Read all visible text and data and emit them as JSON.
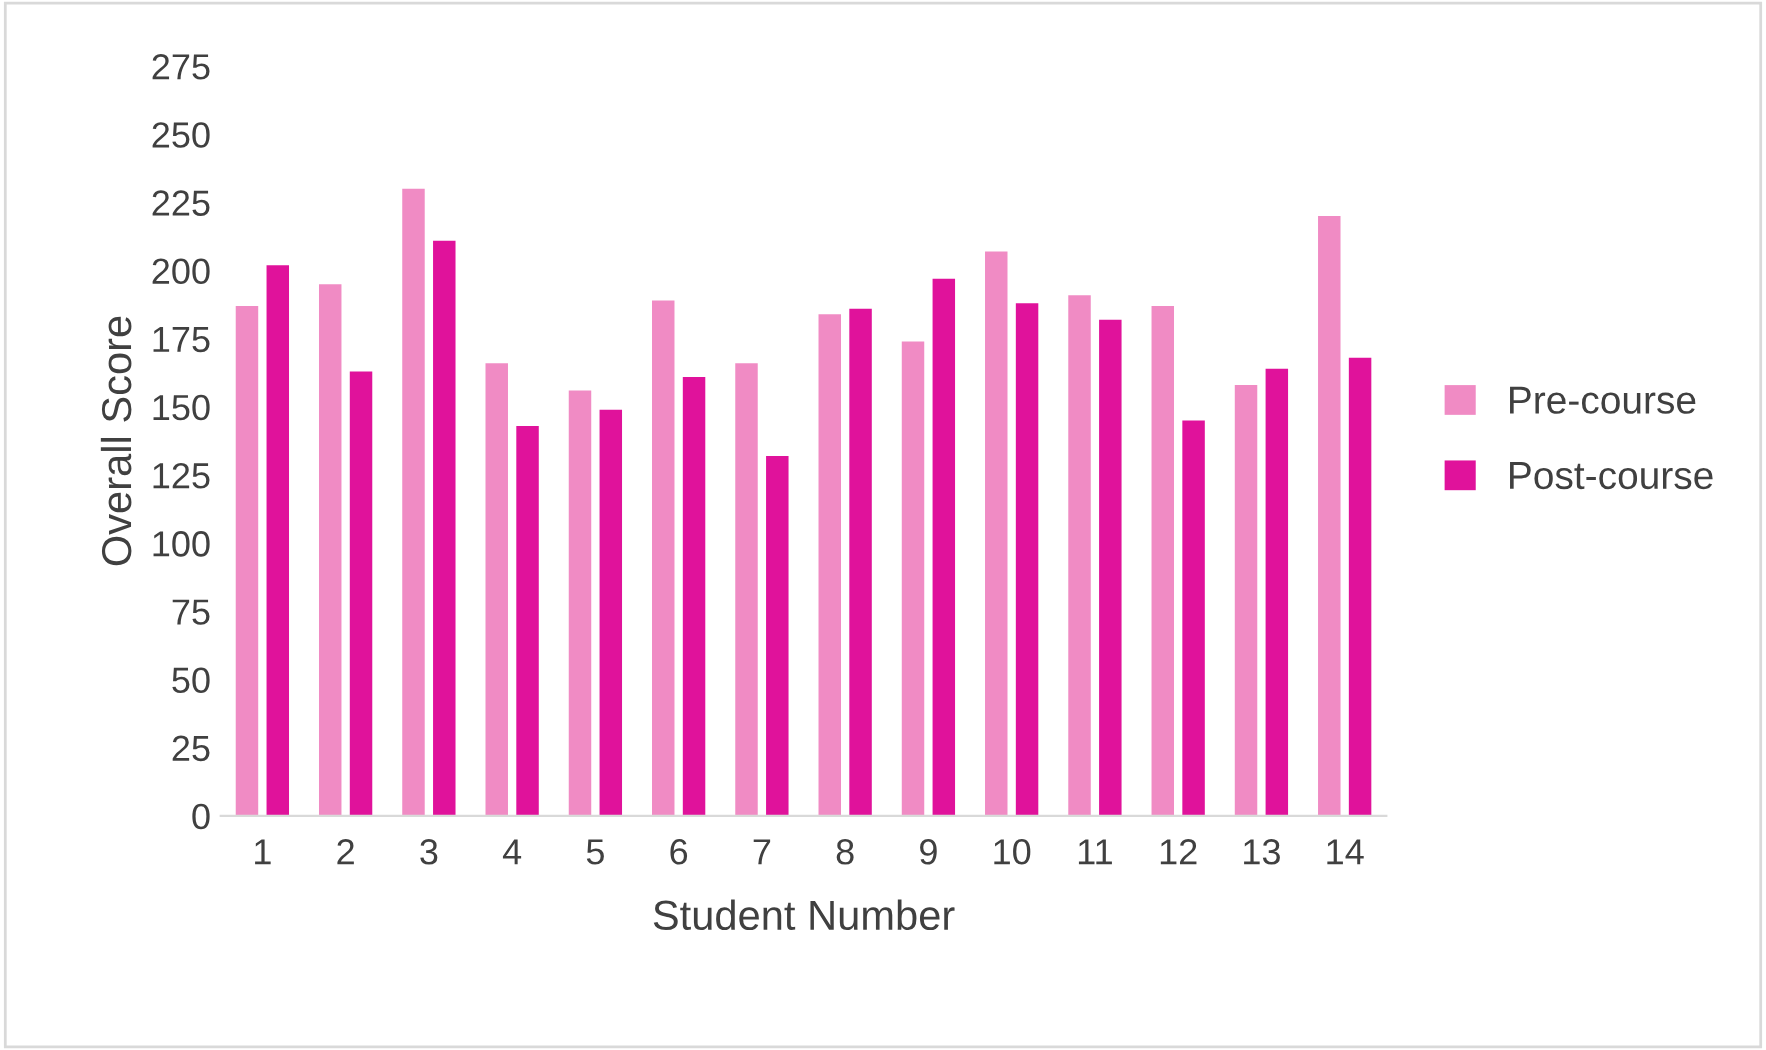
{
  "chart_data": {
    "type": "bar",
    "xlabel": "Student Number",
    "ylabel": "Overall Score",
    "categories": [
      "1",
      "2",
      "3",
      "4",
      "5",
      "6",
      "7",
      "8",
      "9",
      "10",
      "11",
      "12",
      "13",
      "14"
    ],
    "series": [
      {
        "name": "Pre-course",
        "color": "#f08bc4",
        "values": [
          187,
          195,
          230,
          166,
          156,
          189,
          166,
          184,
          174,
          207,
          191,
          187,
          158,
          220
        ]
      },
      {
        "name": "Post-course",
        "color": "#e0129b",
        "values": [
          202,
          163,
          211,
          143,
          149,
          161,
          132,
          186,
          197,
          188,
          182,
          145,
          164,
          168
        ]
      }
    ],
    "ylim": [
      0,
      275
    ],
    "yticks": [
      0,
      25,
      50,
      75,
      100,
      125,
      150,
      175,
      200,
      225,
      250,
      275
    ],
    "grid": false,
    "legend": "right"
  }
}
